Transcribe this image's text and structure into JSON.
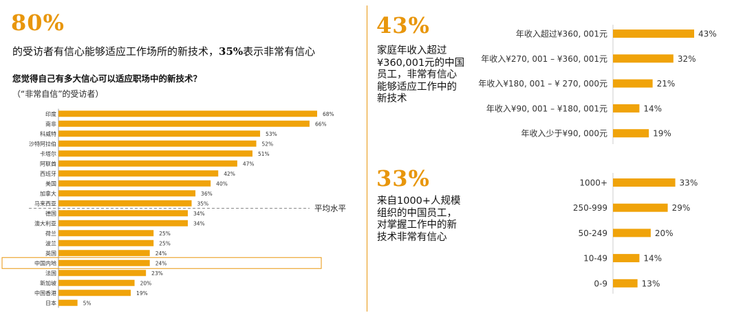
{
  "left": {
    "stat": "80%",
    "headline_part1": "的受访者有信心能够适应工作场所的新技术，",
    "headline_bold": "35%",
    "headline_part2": "表示非常有信心",
    "question": "您觉得自己有多大信心可以适应职场中的新技术？",
    "subquestion": "（“非常自信”的受访者）",
    "avg_label": "平均水平"
  },
  "income": {
    "stat": "43%",
    "description": "家庭年收入超过¥360,001元的中国员工，非常有信心能够适应工作中的新技术"
  },
  "company": {
    "stat": "33%",
    "description": "来自1000+人规模组织的中国员工，对掌握工作中的新技术非常有信心"
  },
  "colors": {
    "bar": "#f0a30a",
    "accent": "#e8960c",
    "highlight_box": "#e8960c"
  },
  "chart_data": [
    {
      "type": "bar",
      "orientation": "horizontal",
      "categories": [
        "印度",
        "南非",
        "科威特",
        "沙特阿拉伯",
        "卡塔尔",
        "阿联酋",
        "西班牙",
        "美国",
        "加拿大",
        "马来西亚",
        "德国",
        "澳大利亚",
        "荷兰",
        "波兰",
        "英国",
        "中国内地",
        "法国",
        "新加坡",
        "中国香港",
        "日本"
      ],
      "values": [
        68,
        66,
        53,
        52,
        51,
        47,
        42,
        40,
        36,
        35,
        34,
        34,
        25,
        25,
        24,
        24,
        23,
        20,
        19,
        5
      ],
      "labels": [
        "68%",
        "66%",
        "53%",
        "52%",
        "51%",
        "47%",
        "42%",
        "40%",
        "36%",
        "35%",
        "34%",
        "34%",
        "25%",
        "25%",
        "24%",
        "24%",
        "23%",
        "20%",
        "19%",
        "5%"
      ],
      "reference_line": {
        "value": 35,
        "label": "平均水平"
      },
      "highlight": "中国内地",
      "xlim": [
        0,
        100
      ]
    },
    {
      "type": "bar",
      "orientation": "horizontal",
      "categories": [
        "年收入超过¥360, 001元",
        "年收入¥270, 001 – ¥360, 001元",
        "年收入¥180, 001 – ¥ 270, 000元",
        "年收入¥90, 001 – ¥180, 001元",
        "年收入少于¥90, 000元"
      ],
      "values": [
        43,
        32,
        21,
        14,
        19
      ],
      "labels": [
        "43%",
        "32%",
        "21%",
        "14%",
        "19%"
      ],
      "xlim": [
        0,
        45
      ]
    },
    {
      "type": "bar",
      "orientation": "horizontal",
      "categories": [
        "1000+",
        "250-999",
        "50-249",
        "10-49",
        "0-9"
      ],
      "values": [
        33,
        29,
        20,
        14,
        13
      ],
      "labels": [
        "33%",
        "29%",
        "20%",
        "14%",
        "13%"
      ],
      "xlim": [
        0,
        45
      ]
    }
  ]
}
